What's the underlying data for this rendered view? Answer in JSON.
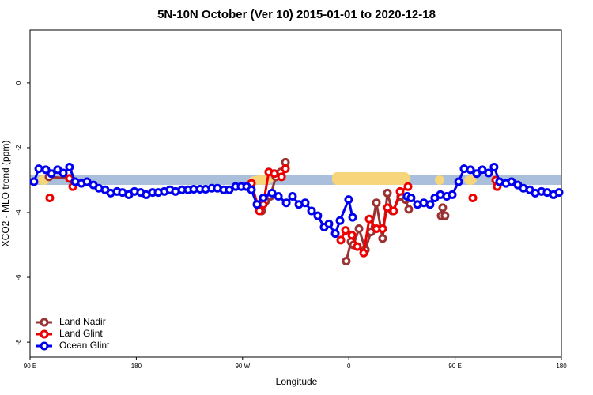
{
  "chart_data": {
    "type": "line",
    "title": "5N-10N October (Ver 10)   2015-01-01 to 2020-12-18",
    "x_label": "Longitude",
    "y_label": "XCO2 - MLO trend (ppm)",
    "xlim": [
      90,
      540
    ],
    "ylim": [
      -8.46,
      1.63
    ],
    "xticks": [
      {
        "value": 90,
        "label": "90 E"
      },
      {
        "value": 180,
        "label": "180"
      },
      {
        "value": 270,
        "label": "90 W"
      },
      {
        "value": 360,
        "label": "0"
      },
      {
        "value": 450,
        "label": "90 E"
      },
      {
        "value": 540,
        "label": "180"
      }
    ],
    "yticks": [
      0,
      -2,
      -4,
      -6,
      -8
    ],
    "legend": "bottom-left",
    "series": [
      {
        "name": "Land Nadir",
        "color": "#993333",
        "x": [
          106.1,
          123.4,
          124,
          286.2,
          289.5,
          293.5,
          298.2,
          302.3,
          306.3,
          330,
          357.8,
          361.9,
          363.9,
          368.6,
          374.0,
          378.7,
          383.3,
          388.6,
          392.7,
          396.7,
          404.0,
          408.1,
          410.7,
          425,
          438.2,
          439.5,
          441.5
        ],
        "values": [
          -2.9,
          -2.95,
          null,
          -3.95,
          -3.65,
          -3.5,
          -2.9,
          -2.75,
          -2.45,
          null,
          -5.5,
          -4.9,
          -5.0,
          -4.5,
          -5.15,
          -4.6,
          -3.7,
          -4.8,
          -3.4,
          -3.95,
          -3.5,
          -3.6,
          -3.9,
          null,
          -4.1,
          -3.85,
          -4.1
        ]
      },
      {
        "name": "Land Glint",
        "color": "#ee0000",
        "x": [
          106.7,
          115,
          123.4,
          126.2,
          200,
          277.5,
          284.2,
          287.5,
          292.2,
          296.9,
          303.0,
          306.3,
          330,
          353.2,
          357.2,
          362.6,
          367.2,
          372.6,
          377.3,
          383.3,
          388.6,
          392.7,
          398.0,
          403.4,
          410.1,
          440,
          465.0,
          475,
          484.4,
          485.7
        ],
        "values": [
          -3.55,
          null,
          -2.95,
          -3.2,
          null,
          -3.1,
          -3.95,
          -3.75,
          -2.75,
          -2.8,
          -2.9,
          -2.65,
          null,
          -4.85,
          -4.55,
          -4.7,
          -5.05,
          -5.25,
          -4.2,
          -4.5,
          -4.5,
          -3.85,
          -3.95,
          -3.35,
          -3.2,
          null,
          -3.55,
          null,
          -3.0,
          -3.2
        ]
      },
      {
        "name": "Ocean Glint",
        "color": "#0000ee",
        "x": [
          93.3,
          97.4,
          103.4,
          108.1,
          113.4,
          118.1,
          123.4,
          128.2,
          133.5,
          138.2,
          143.6,
          148.3,
          153.6,
          158.3,
          163.7,
          168.3,
          173.7,
          178.4,
          183.7,
          188.4,
          193.8,
          198.5,
          203.8,
          208.5,
          213.2,
          218.6,
          223.9,
          228.6,
          234.0,
          238.7,
          244.0,
          248.7,
          254.0,
          258.7,
          264.1,
          268.8,
          273.5,
          277.5,
          282.2,
          287.5,
          294.9,
          300.3,
          307.0,
          312.3,
          317.7,
          323.0,
          328.4,
          333.7,
          339.1,
          343.1,
          348.5,
          352.5,
          359.8,
          363.2,
          385,
          409.4,
          412.7,
          418.1,
          423.5,
          428.8,
          432.8,
          437.5,
          442.9,
          447.6,
          453.0,
          457.6,
          463.0,
          468.3,
          473.0,
          478.4,
          483.0,
          487.7,
          493.1,
          497.8,
          503.1,
          507.8,
          513.2,
          517.9,
          523.2,
          527.9,
          533.3,
          538.0
        ],
        "values": [
          -3.05,
          -2.65,
          -2.68,
          -2.8,
          -2.68,
          -2.78,
          -2.6,
          -3.05,
          -3.1,
          -3.05,
          -3.15,
          -3.25,
          -3.3,
          -3.4,
          -3.35,
          -3.38,
          -3.45,
          -3.35,
          -3.38,
          -3.45,
          -3.38,
          -3.38,
          -3.35,
          -3.3,
          -3.35,
          -3.3,
          -3.3,
          -3.28,
          -3.28,
          -3.28,
          -3.25,
          -3.25,
          -3.3,
          -3.3,
          -3.2,
          -3.2,
          -3.2,
          -3.3,
          -3.75,
          -3.55,
          -3.4,
          -3.5,
          -3.7,
          -3.5,
          -3.75,
          -3.7,
          -3.95,
          -4.1,
          -4.45,
          -4.35,
          -4.65,
          -4.25,
          -3.6,
          -4.15,
          null,
          -3.5,
          -3.55,
          -3.75,
          -3.7,
          -3.75,
          -3.55,
          -3.45,
          -3.5,
          -3.45,
          -3.05,
          -2.65,
          -2.68,
          -2.8,
          -2.68,
          -2.78,
          -2.6,
          -3.05,
          -3.1,
          -3.05,
          -3.15,
          -3.25,
          -3.3,
          -3.4,
          -3.35,
          -3.38,
          -3.45,
          -3.38
        ]
      }
    ]
  }
}
